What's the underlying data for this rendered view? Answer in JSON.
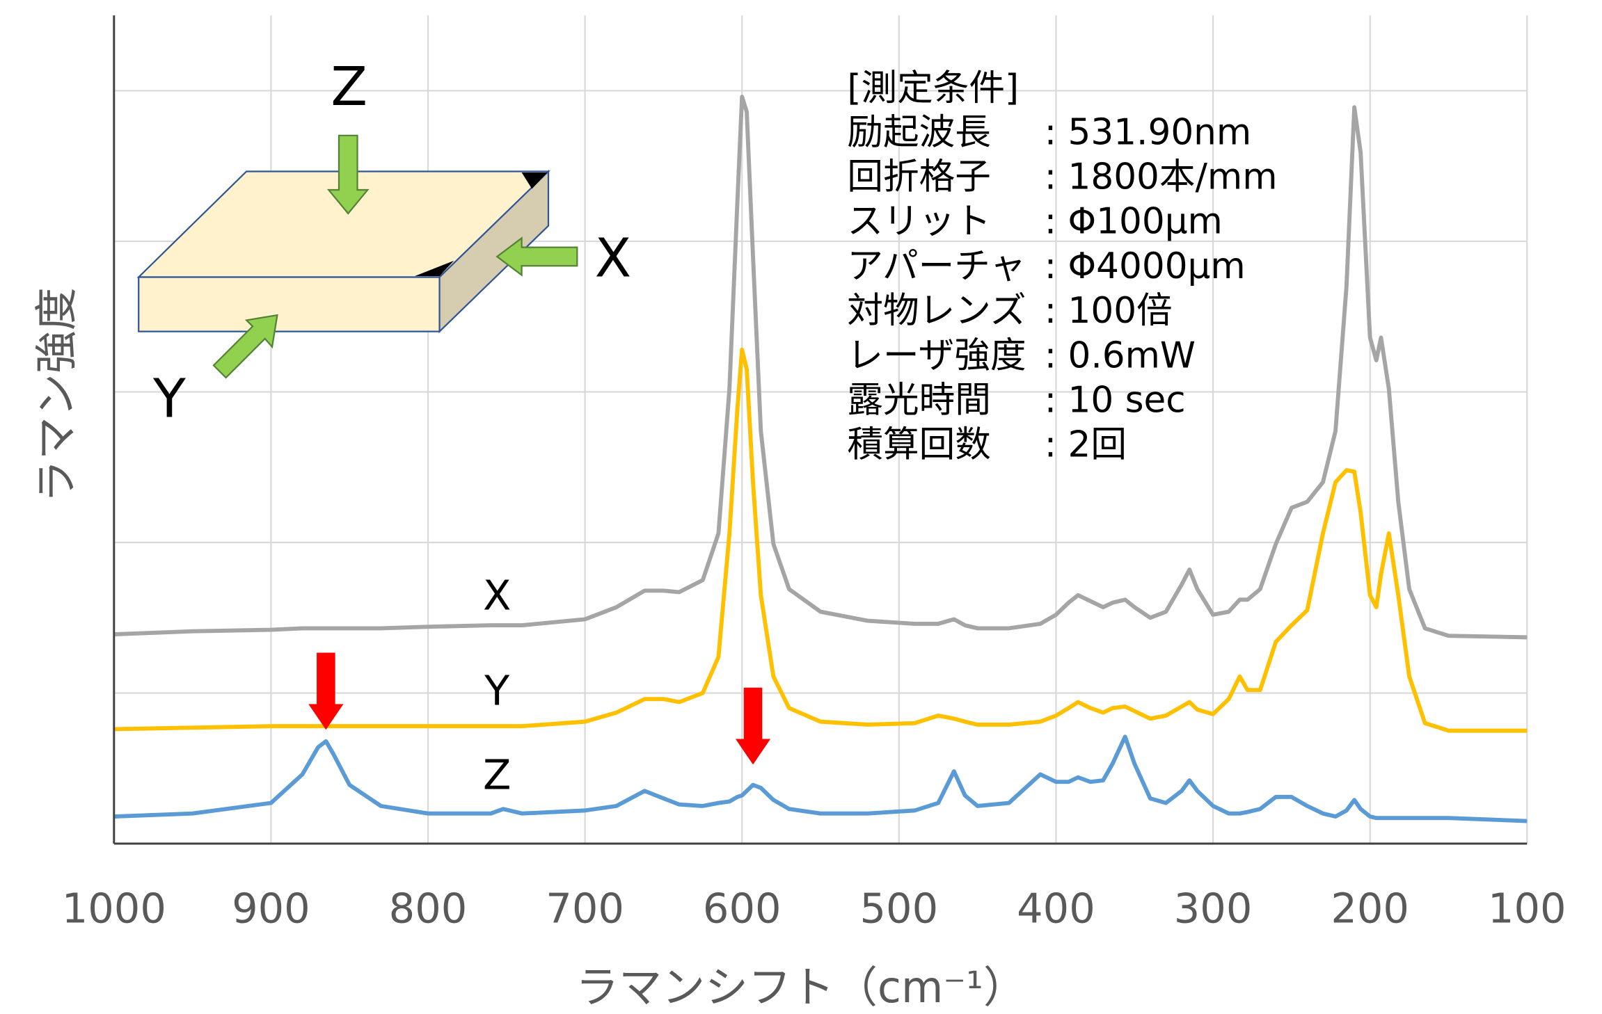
{
  "chart_data": {
    "type": "line",
    "x_label": "ラマンシフト（cm⁻¹）",
    "y_label": "ラマン強度",
    "xlim": [
      1000,
      100
    ],
    "xticks": [
      1000,
      900,
      800,
      700,
      600,
      500,
      400,
      300,
      200,
      100
    ],
    "ylim": [
      0,
      5.5
    ],
    "yticks": [
      0,
      1,
      2,
      3,
      4,
      5
    ],
    "grid": true,
    "x": [
      1000,
      950,
      900,
      880,
      870,
      865,
      860,
      850,
      830,
      800,
      760,
      752,
      740,
      700,
      680,
      662,
      650,
      640,
      625,
      615,
      608,
      603,
      600,
      597,
      593,
      588,
      580,
      570,
      550,
      520,
      490,
      475,
      465,
      458,
      450,
      430,
      410,
      400,
      392,
      386,
      378,
      370,
      364,
      356,
      350,
      340,
      330,
      320,
      315,
      310,
      300,
      290,
      283,
      278,
      270,
      260,
      250,
      240,
      230,
      222,
      215,
      210,
      206,
      200,
      196,
      193,
      188,
      182,
      175,
      165,
      150,
      100
    ],
    "series": [
      {
        "name": "X",
        "color": "#a5a5a5",
        "values": [
          1.39,
          1.41,
          1.42,
          1.43,
          1.43,
          1.43,
          1.43,
          1.43,
          1.43,
          1.44,
          1.45,
          1.45,
          1.45,
          1.49,
          1.57,
          1.68,
          1.68,
          1.67,
          1.75,
          2.06,
          3.02,
          4.25,
          4.96,
          4.86,
          3.9,
          2.74,
          1.99,
          1.69,
          1.54,
          1.48,
          1.46,
          1.46,
          1.49,
          1.45,
          1.43,
          1.43,
          1.46,
          1.52,
          1.6,
          1.65,
          1.61,
          1.57,
          1.6,
          1.62,
          1.57,
          1.5,
          1.54,
          1.72,
          1.82,
          1.69,
          1.52,
          1.54,
          1.62,
          1.62,
          1.69,
          1.99,
          2.23,
          2.27,
          2.4,
          2.74,
          3.7,
          4.89,
          4.59,
          3.36,
          3.21,
          3.36,
          3.02,
          2.27,
          1.69,
          1.43,
          1.38,
          1.37
        ]
      },
      {
        "name": "Y",
        "color": "#ffc000",
        "values": [
          0.76,
          0.77,
          0.78,
          0.78,
          0.78,
          0.78,
          0.78,
          0.78,
          0.78,
          0.78,
          0.78,
          0.78,
          0.78,
          0.81,
          0.87,
          0.96,
          0.96,
          0.94,
          1.0,
          1.24,
          2.06,
          2.88,
          3.28,
          3.15,
          2.4,
          1.65,
          1.11,
          0.9,
          0.81,
          0.79,
          0.8,
          0.85,
          0.83,
          0.81,
          0.79,
          0.79,
          0.81,
          0.85,
          0.9,
          0.94,
          0.9,
          0.87,
          0.9,
          0.91,
          0.88,
          0.83,
          0.85,
          0.91,
          0.94,
          0.89,
          0.86,
          0.96,
          1.11,
          1.02,
          1.02,
          1.34,
          1.45,
          1.55,
          2.06,
          2.4,
          2.48,
          2.47,
          2.2,
          1.65,
          1.57,
          1.79,
          2.06,
          1.65,
          1.11,
          0.8,
          0.75,
          0.75
        ]
      },
      {
        "name": "Z",
        "color": "#5b9bd5",
        "values": [
          0.18,
          0.2,
          0.27,
          0.46,
          0.64,
          0.68,
          0.59,
          0.39,
          0.25,
          0.2,
          0.2,
          0.23,
          0.2,
          0.22,
          0.25,
          0.35,
          0.3,
          0.26,
          0.25,
          0.27,
          0.28,
          0.31,
          0.32,
          0.35,
          0.39,
          0.37,
          0.29,
          0.23,
          0.2,
          0.2,
          0.22,
          0.27,
          0.48,
          0.32,
          0.25,
          0.27,
          0.46,
          0.41,
          0.41,
          0.44,
          0.41,
          0.42,
          0.53,
          0.71,
          0.53,
          0.3,
          0.27,
          0.35,
          0.42,
          0.35,
          0.25,
          0.2,
          0.2,
          0.21,
          0.23,
          0.31,
          0.31,
          0.25,
          0.2,
          0.18,
          0.22,
          0.29,
          0.23,
          0.18,
          0.17,
          0.17,
          0.17,
          0.17,
          0.17,
          0.17,
          0.17,
          0.15
        ]
      }
    ],
    "arrows_x": [
      865,
      593
    ],
    "arrow_color": "#ff0000",
    "inset_labels": [
      "Z",
      "X",
      "Y"
    ],
    "conditions_title": "[測定条件]",
    "conditions": [
      [
        "励起波長",
        ": 531.90nm"
      ],
      [
        "回折格子",
        ": 1800本/mm"
      ],
      [
        "スリット",
        ": Φ100μm"
      ],
      [
        "アパーチャ",
        ": Φ4000μm"
      ],
      [
        "対物レンズ",
        ": 100倍"
      ],
      [
        "レーザ強度",
        ": 0.6mW"
      ],
      [
        "露光時間",
        ": 10 sec"
      ],
      [
        "積算回数",
        ": 2回"
      ]
    ]
  }
}
